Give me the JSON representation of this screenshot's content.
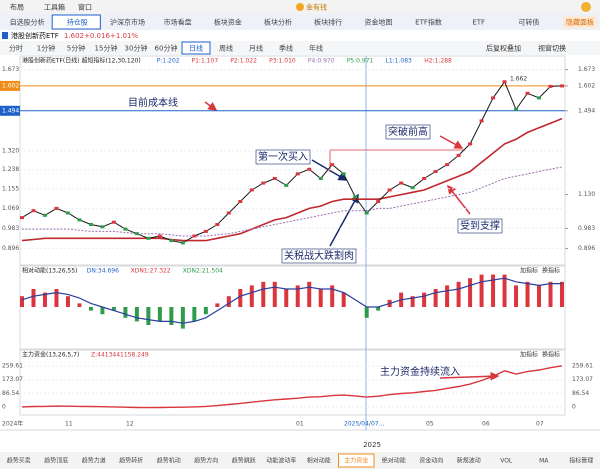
{
  "menu": [
    "布局",
    "工具箱",
    "窗口"
  ],
  "brand": "金有钱",
  "tabs": [
    "自选股分析",
    "持仓股",
    "沪深京市场",
    "市场看盘",
    "板块资金",
    "板块分析",
    "板块排行",
    "资金地图",
    "ETF指数",
    "ETF",
    "可转债"
  ],
  "active_tab": 1,
  "hide_panel": "隐藏面板",
  "quote": {
    "name": "港股创新药ETF",
    "price": "1.602",
    "change": "+0.016",
    "pct": "+1.01%"
  },
  "periods": [
    "分时",
    "1分钟",
    "5分钟",
    "15分钟",
    "30分钟",
    "60分钟",
    "日线",
    "周线",
    "月线",
    "季线",
    "年线"
  ],
  "active_period": 6,
  "period_right": [
    "后复权叠加",
    "视窗切换"
  ],
  "main": {
    "info": [
      "港股创新药ETF(日线) 超短指标(12,30,120)",
      "P:1.202",
      "P1:1.107",
      "P2:1.022",
      "P3:1.010",
      "P4:0.970",
      "P5:0.971",
      "L1:1.083",
      "H2:1.288"
    ],
    "peak_label": "1.662",
    "ylim": [
      0.824,
      1.732
    ],
    "yticks": [
      0.896,
      0.983,
      1.069,
      1.155,
      {
        "value": 1.238,
        "label": "1.238"
      },
      {
        "value": 1.32,
        "label": "1.320"
      },
      1.494,
      1.602,
      1.673
    ],
    "right_ticks": [
      0.896,
      0.983,
      {
        "value": 1.13,
        "label": "1.130"
      },
      1.494,
      1.602,
      1.673
    ],
    "close": [
      1.03,
      1.06,
      1.04,
      1.07,
      1.05,
      1.02,
      1.0,
      0.99,
      1.01,
      0.98,
      0.96,
      0.94,
      0.95,
      0.93,
      0.92,
      0.95,
      0.97,
      1.0,
      1.05,
      1.1,
      1.15,
      1.18,
      1.2,
      1.17,
      1.22,
      1.24,
      1.2,
      1.26,
      1.22,
      1.12,
      1.05,
      1.1,
      1.15,
      1.18,
      1.16,
      1.2,
      1.23,
      1.26,
      1.3,
      1.35,
      1.45,
      1.55,
      1.62,
      1.5,
      1.57,
      1.55,
      1.6,
      1.602
    ],
    "close_color": "#1a1a1a",
    "lines": [
      {
        "color": "#c0282d",
        "values": [
          0.93,
          0.935,
          0.94,
          0.94,
          0.94,
          0.94,
          0.94,
          0.94,
          0.94,
          0.94,
          0.94,
          0.94,
          0.94,
          0.935,
          0.93,
          0.93,
          0.93,
          0.94,
          0.95,
          0.96,
          0.98,
          1.0,
          1.02,
          1.03,
          1.05,
          1.07,
          1.08,
          1.1,
          1.11,
          1.11,
          1.11,
          1.11,
          1.12,
          1.13,
          1.14,
          1.15,
          1.17,
          1.19,
          1.21,
          1.23,
          1.27,
          1.31,
          1.35,
          1.37,
          1.4,
          1.42,
          1.44,
          1.46
        ]
      },
      {
        "color": "#9a6fb0",
        "values": [
          0.98,
          0.98,
          0.98,
          0.98,
          0.98,
          0.975,
          0.97,
          0.97,
          0.97,
          0.965,
          0.96,
          0.96,
          0.96,
          0.955,
          0.95,
          0.95,
          0.95,
          0.955,
          0.96,
          0.97,
          0.98,
          0.99,
          1.0,
          1.01,
          1.02,
          1.03,
          1.04,
          1.05,
          1.06,
          1.06,
          1.06,
          1.07,
          1.07,
          1.08,
          1.09,
          1.1,
          1.11,
          1.12,
          1.13,
          1.14,
          1.16,
          1.18,
          1.2,
          1.21,
          1.22,
          1.23,
          1.24,
          1.25
        ]
      }
    ],
    "annotations": [
      "目前成本线",
      "第一次买入",
      "突破前高",
      "受到支撑",
      "关税战大跌割肉"
    ]
  },
  "momentum": {
    "info": [
      "相对动能(13,26,55)",
      "DN:34.696",
      "XDN1:27.322",
      "XDN2:21.504"
    ],
    "buttons": [
      "加指标",
      "换指标"
    ],
    "ylim": [
      -1,
      1
    ],
    "bars": [
      0.3,
      0.5,
      0.4,
      0.5,
      0.3,
      0.1,
      -0.1,
      -0.2,
      -0.1,
      -0.3,
      -0.4,
      -0.5,
      -0.4,
      -0.5,
      -0.6,
      -0.4,
      -0.2,
      0.1,
      0.3,
      0.5,
      0.6,
      0.7,
      0.7,
      0.5,
      0.6,
      0.7,
      0.5,
      0.6,
      0.4,
      0.0,
      -0.3,
      -0.1,
      0.2,
      0.4,
      0.3,
      0.4,
      0.5,
      0.6,
      0.7,
      0.8,
      0.9,
      0.9,
      0.9,
      0.6,
      0.7,
      0.6,
      0.7,
      0.7
    ],
    "line": [
      0.2,
      0.3,
      0.35,
      0.4,
      0.35,
      0.25,
      0.1,
      0.0,
      -0.1,
      -0.2,
      -0.3,
      -0.35,
      -0.4,
      -0.4,
      -0.45,
      -0.4,
      -0.3,
      -0.1,
      0.1,
      0.3,
      0.4,
      0.5,
      0.55,
      0.5,
      0.5,
      0.55,
      0.5,
      0.5,
      0.4,
      0.2,
      0.0,
      0.0,
      0.1,
      0.2,
      0.25,
      0.3,
      0.4,
      0.45,
      0.5,
      0.6,
      0.7,
      0.75,
      0.8,
      0.7,
      0.65,
      0.6,
      0.65,
      0.65
    ],
    "up_color": "#d9363e",
    "down_color": "#2e9b4a",
    "line_color": "#2c3e9e"
  },
  "flow": {
    "info": [
      "主力资金(13,26,5,7)",
      "Z:4413441158.249"
    ],
    "buttons": [
      "加指标",
      "换指标"
    ],
    "annotation": "主力资金持续流入",
    "ylim": [
      -52,
      363
    ],
    "yticks": [
      0,
      86.54,
      173.07,
      259.61
    ],
    "values": [
      0,
      2,
      3,
      5,
      4,
      3,
      2,
      1,
      0,
      -2,
      -4,
      -5,
      -4,
      -3,
      -2,
      0,
      3,
      8,
      15,
      22,
      30,
      38,
      45,
      50,
      55,
      62,
      65,
      72,
      75,
      70,
      62,
      68,
      78,
      85,
      90,
      98,
      105,
      118,
      130,
      145,
      168,
      195,
      230,
      210,
      225,
      235,
      250,
      262
    ],
    "color": "#d9363e"
  },
  "xaxis": {
    "labels": [
      "2024年",
      "11",
      "12",
      "01",
      "2025/04/07...",
      "05",
      "06",
      "07"
    ],
    "year": "2025"
  },
  "bottom_tabs": [
    "趋势买卖",
    "趋势顶底",
    "趋势力道",
    "趋势转折",
    "趋势机动",
    "趋势方向",
    "趋势跳跃",
    "动能波动率",
    "相对动能",
    "主力资金",
    "绝对动能",
    "资金动向",
    "新规波动",
    "VOL",
    "MA",
    "指标管理"
  ],
  "active_bottom": 9
}
